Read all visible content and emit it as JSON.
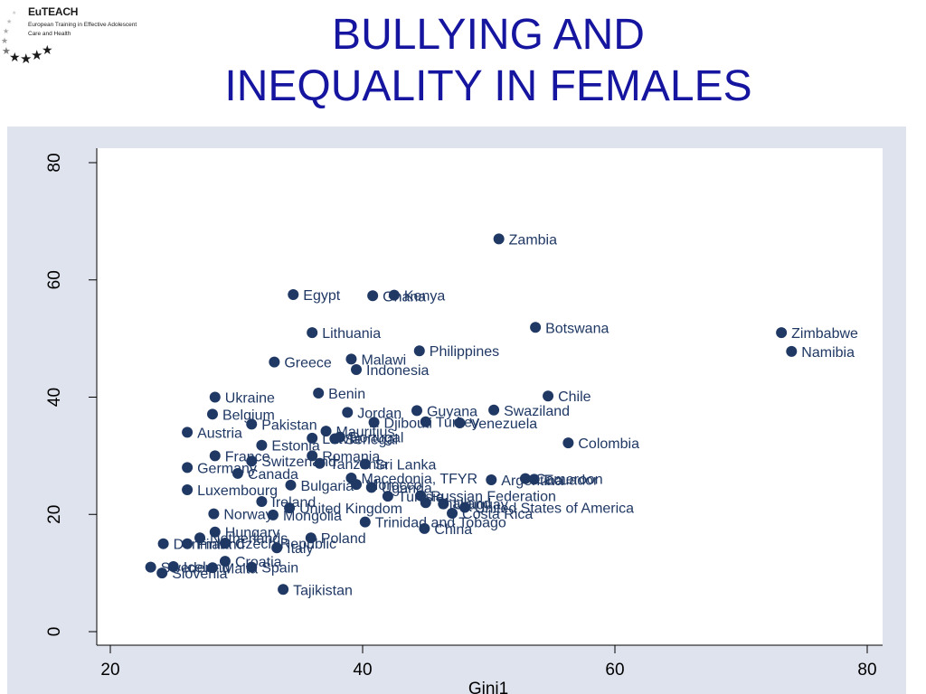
{
  "logo": {
    "brand": "EuTEACH",
    "line1": "European Training in Effective Adolescent",
    "line2": "Care and Health"
  },
  "title": {
    "line1": "BULLYING AND",
    "line2": "INEQUALITY IN FEMALES"
  },
  "colors": {
    "title": "#1515a0",
    "point": "#1f3864",
    "outer_panel": "#dfe3ee",
    "plot_bg": "#ffffff"
  },
  "chart_data": {
    "type": "scatter",
    "title": "BULLYING AND INEQUALITY IN FEMALES",
    "xlabel": "Gini1",
    "ylabel": "",
    "xlim": [
      20,
      80
    ],
    "ylim": [
      0,
      80
    ],
    "xticks": [
      20,
      40,
      60,
      80
    ],
    "yticks": [
      0,
      20,
      40,
      60,
      80
    ],
    "grid": false,
    "legend": "none",
    "points": [
      {
        "label": "Zambia",
        "x": 50.8,
        "y": 67
      },
      {
        "label": "Egypt",
        "x": 34.5,
        "y": 57.5
      },
      {
        "label": "Ghana",
        "x": 40.8,
        "y": 57.3
      },
      {
        "label": "Kenya",
        "x": 42.5,
        "y": 57.4
      },
      {
        "label": "Botswana",
        "x": 53.7,
        "y": 51.9
      },
      {
        "label": "Lithuania",
        "x": 36,
        "y": 51
      },
      {
        "label": "Zimbabwe",
        "x": 73.2,
        "y": 51
      },
      {
        "label": "Philippines",
        "x": 44.5,
        "y": 47.9
      },
      {
        "label": "Namibia",
        "x": 74,
        "y": 47.8
      },
      {
        "label": "Greece",
        "x": 33,
        "y": 46
      },
      {
        "label": "Malawi",
        "x": 39.1,
        "y": 46.5
      },
      {
        "label": "Indonesia",
        "x": 39.5,
        "y": 44.7
      },
      {
        "label": "Benin",
        "x": 36.5,
        "y": 40.7
      },
      {
        "label": "Ukraine",
        "x": 28.3,
        "y": 40
      },
      {
        "label": "Chile",
        "x": 54.7,
        "y": 40.2
      },
      {
        "label": "Belgium",
        "x": 28.1,
        "y": 37.1
      },
      {
        "label": "Jordan",
        "x": 38.8,
        "y": 37.4
      },
      {
        "label": "Guyana",
        "x": 44.3,
        "y": 37.7
      },
      {
        "label": "Swaziland",
        "x": 50.4,
        "y": 37.8
      },
      {
        "label": "Djibouti",
        "x": 40.9,
        "y": 35.7
      },
      {
        "label": "Turkey",
        "x": 45,
        "y": 35.8
      },
      {
        "label": "Venezuela",
        "x": 47.7,
        "y": 35.6
      },
      {
        "label": "Pakistan",
        "x": 31.2,
        "y": 35.4
      },
      {
        "label": "Mauritius",
        "x": 37.1,
        "y": 34.2
      },
      {
        "label": "Austria",
        "x": 26.1,
        "y": 34
      },
      {
        "label": "Latvia",
        "x": 36,
        "y": 33
      },
      {
        "label": "Senegal",
        "x": 37.8,
        "y": 32.9
      },
      {
        "label": "Portugal",
        "x": 38.2,
        "y": 33.2
      },
      {
        "label": "Estonia",
        "x": 32,
        "y": 31.8
      },
      {
        "label": "Colombia",
        "x": 56.3,
        "y": 32.2
      },
      {
        "label": "France",
        "x": 28.3,
        "y": 30
      },
      {
        "label": "Romania",
        "x": 36,
        "y": 30
      },
      {
        "label": "Switzerland",
        "x": 31.2,
        "y": 29.1
      },
      {
        "label": "Tanzania",
        "x": 36.6,
        "y": 28.7
      },
      {
        "label": "Sri Lanka",
        "x": 40.2,
        "y": 28.6
      },
      {
        "label": "Germany",
        "x": 26.1,
        "y": 28
      },
      {
        "label": "Canada",
        "x": 30.1,
        "y": 27
      },
      {
        "label": "Macedonia, TFYR",
        "x": 39.1,
        "y": 26.2
      },
      {
        "label": "Argentina",
        "x": 50.2,
        "y": 25.9
      },
      {
        "label": "Cameroon",
        "x": 52.9,
        "y": 26.1
      },
      {
        "label": "Ecuador",
        "x": 53.6,
        "y": 26
      },
      {
        "label": "Bulgaria",
        "x": 34.3,
        "y": 25
      },
      {
        "label": "Morocco",
        "x": 39.5,
        "y": 25.1
      },
      {
        "label": "Uganda",
        "x": 40.7,
        "y": 24.6
      },
      {
        "label": "Luxembourg",
        "x": 26.1,
        "y": 24.2
      },
      {
        "label": "Tunisia",
        "x": 42,
        "y": 23.1
      },
      {
        "label": "Russian Federation",
        "x": 44.6,
        "y": 23.2
      },
      {
        "label": "Ireland",
        "x": 32,
        "y": 22.2
      },
      {
        "label": "Thailand",
        "x": 45,
        "y": 22
      },
      {
        "label": "Uruguay",
        "x": 46.4,
        "y": 21.8
      },
      {
        "label": "United Kingdom",
        "x": 34.2,
        "y": 21.1
      },
      {
        "label": "United States of America",
        "x": 48.1,
        "y": 21.2
      },
      {
        "label": "Norway",
        "x": 28.2,
        "y": 20.1
      },
      {
        "label": "Mongolia",
        "x": 32.9,
        "y": 19.9
      },
      {
        "label": "Costa Rica",
        "x": 47.1,
        "y": 20.2
      },
      {
        "label": "Trinidad and Tobago",
        "x": 40.2,
        "y": 18.7
      },
      {
        "label": "China",
        "x": 44.9,
        "y": 17.6
      },
      {
        "label": "Hungary",
        "x": 28.3,
        "y": 17
      },
      {
        "label": "Netherlands",
        "x": 27.1,
        "y": 16
      },
      {
        "label": "Poland",
        "x": 35.9,
        "y": 16
      },
      {
        "label": "Denmark",
        "x": 24.2,
        "y": 15
      },
      {
        "label": "Finland",
        "x": 26.1,
        "y": 15
      },
      {
        "label": "Czech Republic",
        "x": 29.1,
        "y": 15.1
      },
      {
        "label": "Italy",
        "x": 33.2,
        "y": 14.3
      },
      {
        "label": "Croatia",
        "x": 29.1,
        "y": 12
      },
      {
        "label": "Sweden",
        "x": 23.2,
        "y": 11
      },
      {
        "label": "Iceland",
        "x": 25,
        "y": 11.1
      },
      {
        "label": "Malta",
        "x": 28.1,
        "y": 10.9
      },
      {
        "label": "Spain",
        "x": 31.2,
        "y": 11
      },
      {
        "label": "Slovenia",
        "x": 24.1,
        "y": 10
      },
      {
        "label": "Tajikistan",
        "x": 33.7,
        "y": 7.2
      }
    ]
  }
}
